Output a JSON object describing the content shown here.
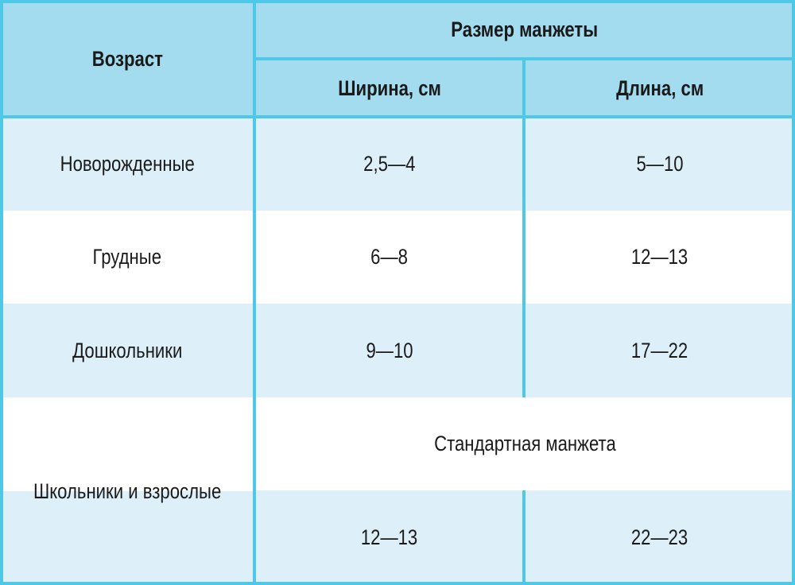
{
  "table": {
    "header": {
      "age": "Возраст",
      "cuff_size": "Размер манжеты",
      "width": "Ширина, см",
      "length": "Длина, см"
    },
    "rows": [
      {
        "age": "Новорожденные",
        "width": "2,5—4",
        "length": "5—10"
      },
      {
        "age": "Грудные",
        "width": "6—8",
        "length": "12—13"
      },
      {
        "age": "Дошкольники",
        "width": "9—10",
        "length": "17—22"
      },
      {
        "age": "Школьники и взрослые",
        "standard": "Стандартная манжета",
        "width": "12—13",
        "length": "22—23"
      }
    ],
    "colors": {
      "border": "#4ec8e6",
      "header_bg": "#a3dbef",
      "row_light": "#ddf0f9",
      "row_white": "#ffffff"
    }
  }
}
